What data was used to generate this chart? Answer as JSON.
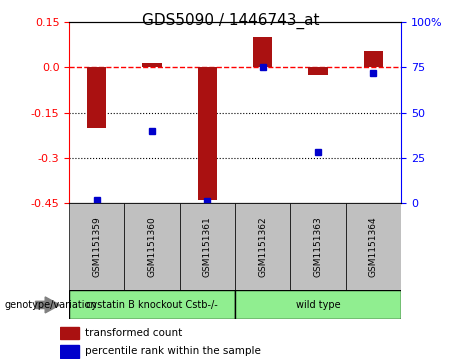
{
  "title": "GDS5090 / 1446743_at",
  "samples": [
    "GSM1151359",
    "GSM1151360",
    "GSM1151361",
    "GSM1151362",
    "GSM1151363",
    "GSM1151364"
  ],
  "transformed_count": [
    -0.2,
    0.015,
    -0.44,
    0.1,
    -0.025,
    0.055
  ],
  "percentile_rank": [
    2,
    40,
    1,
    75,
    28,
    72
  ],
  "group_labels": [
    "cystatin B knockout Cstb-/-",
    "wild type"
  ],
  "group_sizes": [
    3,
    3
  ],
  "bar_color": "#aa1111",
  "dot_color": "#0000cc",
  "ylim_left": [
    -0.45,
    0.15
  ],
  "ylim_right": [
    0,
    100
  ],
  "yticks_left": [
    0.15,
    0.0,
    -0.15,
    -0.3,
    -0.45
  ],
  "yticks_right": [
    100,
    75,
    50,
    25,
    0
  ],
  "hline_y": 0,
  "dotted_lines": [
    -0.15,
    -0.3
  ],
  "bg_color": "#ffffff",
  "plot_bg": "#ffffff",
  "legend_items": [
    "transformed count",
    "percentile rank within the sample"
  ],
  "xlabel": "genotype/variation",
  "sample_box_color": "#c0c0c0",
  "group1_color": "#90ee90",
  "group2_color": "#90ee90"
}
